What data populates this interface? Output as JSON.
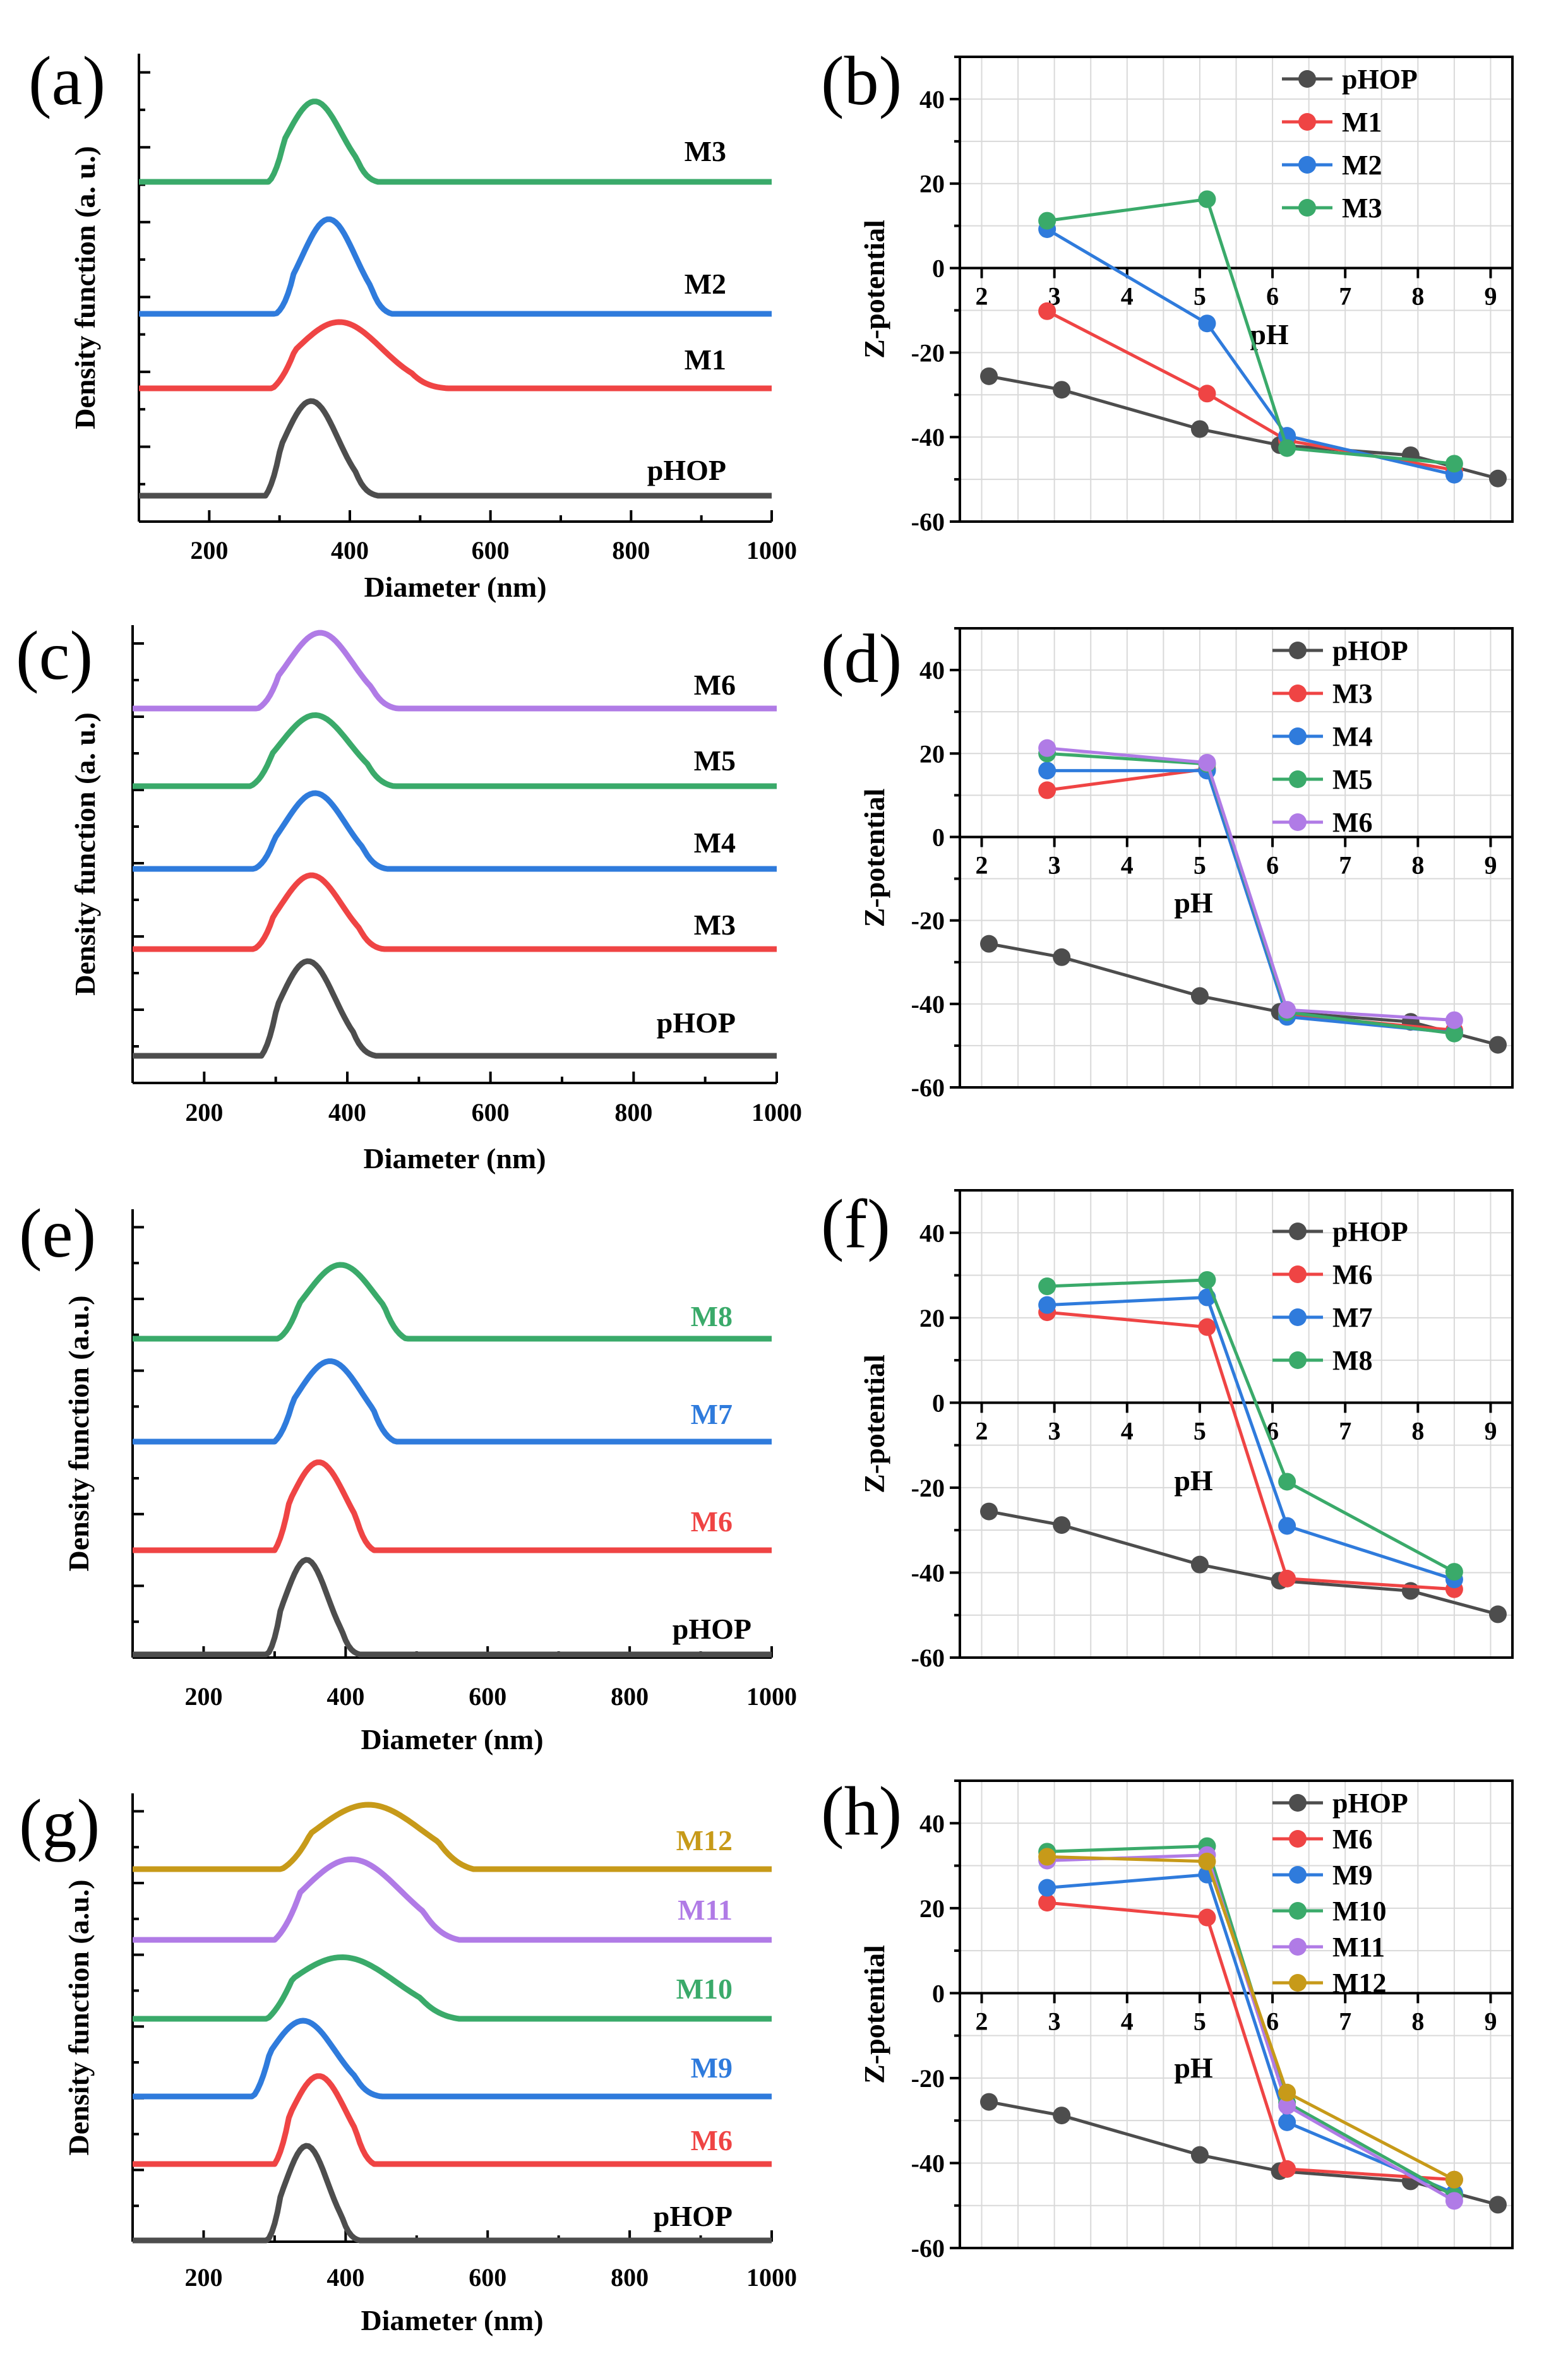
{
  "chart_data": [
    {
      "id": "a",
      "panel_label": "(a)",
      "type": "line",
      "title": "",
      "xlabel": "Diameter (nm)",
      "ylabel": "Density function (a. u.)",
      "xlim": [
        100,
        1000
      ],
      "xticks": [
        "200",
        "400",
        "600",
        "800",
        "1000"
      ],
      "xtick_values": [
        200,
        400,
        600,
        800,
        1000
      ],
      "series": [
        {
          "name": "pHOP",
          "color": "#4d4d4d",
          "peak": 345,
          "width": 38,
          "height": 1.0,
          "start": 280,
          "end": 440
        },
        {
          "name": "M1",
          "color": "#ef4444",
          "peak": 385,
          "width": 60,
          "height": 0.7,
          "start": 290,
          "end": 540
        },
        {
          "name": "M2",
          "color": "#2f7bdc",
          "peak": 370,
          "width": 38,
          "height": 1.0,
          "start": 295,
          "end": 460
        },
        {
          "name": "M3",
          "color": "#3aaa6a",
          "peak": 350,
          "width": 38,
          "height": 0.85,
          "start": 285,
          "end": 440
        }
      ]
    },
    {
      "id": "b",
      "panel_label": "(b)",
      "type": "line",
      "title": "",
      "xlabel": "pH",
      "ylabel": "Z-potential",
      "xlim": [
        1.7,
        9.3
      ],
      "ylim": [
        -60,
        50
      ],
      "xticks": [
        "2",
        "3",
        "4",
        "5",
        "6",
        "7",
        "8",
        "9"
      ],
      "yticks": [
        "40",
        "20",
        "0",
        "-20",
        "-40",
        "-60"
      ],
      "ytick_values": [
        40,
        20,
        0,
        -20,
        -40,
        -60
      ],
      "series": [
        {
          "name": "pHOP",
          "color": "#4d4d4d",
          "x": [
            2.1,
            3.1,
            5.0,
            6.1,
            7.9,
            9.1
          ],
          "y": [
            -25.6,
            -28.8,
            -38.1,
            -41.9,
            -44.3,
            -49.8
          ]
        },
        {
          "name": "M1",
          "color": "#ef4444",
          "x": [
            2.9,
            5.1,
            6.2,
            8.5
          ],
          "y": [
            -10.2,
            -29.7,
            -40.8,
            -47.8
          ]
        },
        {
          "name": "M2",
          "color": "#2f7bdc",
          "x": [
            2.9,
            5.1,
            6.2,
            8.5
          ],
          "y": [
            9.2,
            -13.1,
            -39.7,
            -48.9
          ]
        },
        {
          "name": "M3",
          "color": "#3aaa6a",
          "x": [
            2.9,
            5.1,
            6.2,
            8.5
          ],
          "y": [
            11.2,
            16.3,
            -42.6,
            -46.3
          ]
        }
      ]
    },
    {
      "id": "c",
      "panel_label": "(c)",
      "type": "line",
      "title": "",
      "xlabel": "Diameter (nm)",
      "ylabel": "Density function (a. u.)",
      "xlim": [
        100,
        1000
      ],
      "xticks": [
        "200",
        "400",
        "600",
        "800",
        "1000"
      ],
      "xtick_values": [
        200,
        400,
        600,
        800,
        1000
      ],
      "series": [
        {
          "name": "pHOP",
          "color": "#4d4d4d",
          "peak": 345,
          "width": 38,
          "height": 1.0,
          "start": 280,
          "end": 440
        },
        {
          "name": "M3",
          "color": "#ef4444",
          "peak": 350,
          "width": 42,
          "height": 0.78,
          "start": 270,
          "end": 450
        },
        {
          "name": "M4",
          "color": "#2f7bdc",
          "peak": 355,
          "width": 42,
          "height": 0.8,
          "start": 270,
          "end": 455
        },
        {
          "name": "M5",
          "color": "#3aaa6a",
          "peak": 355,
          "width": 48,
          "height": 0.75,
          "start": 265,
          "end": 465
        },
        {
          "name": "M6",
          "color": "#b07be6",
          "peak": 362,
          "width": 45,
          "height": 0.8,
          "start": 275,
          "end": 470
        }
      ]
    },
    {
      "id": "d",
      "panel_label": "(d)",
      "type": "line",
      "title": "",
      "xlabel": "pH",
      "ylabel": "Z-potential",
      "xlim": [
        1.7,
        9.3
      ],
      "ylim": [
        -60,
        50
      ],
      "xticks": [
        "2",
        "3",
        "4",
        "5",
        "6",
        "7",
        "8",
        "9"
      ],
      "yticks": [
        "40",
        "20",
        "0",
        "-20",
        "-40",
        "-60"
      ],
      "ytick_values": [
        40,
        20,
        0,
        -20,
        -40,
        -60
      ],
      "series": [
        {
          "name": "pHOP",
          "color": "#4d4d4d",
          "x": [
            2.1,
            3.1,
            5.0,
            6.1,
            7.9,
            9.1
          ],
          "y": [
            -25.6,
            -28.8,
            -38.1,
            -41.9,
            -44.3,
            -49.8
          ]
        },
        {
          "name": "M3",
          "color": "#ef4444",
          "x": [
            2.9,
            5.1,
            6.2,
            8.5
          ],
          "y": [
            11.2,
            16.3,
            -42.6,
            -46.3
          ]
        },
        {
          "name": "M4",
          "color": "#2f7bdc",
          "x": [
            2.9,
            5.1,
            6.2,
            8.5
          ],
          "y": [
            15.9,
            15.9,
            -43.1,
            -46.9
          ]
        },
        {
          "name": "M5",
          "color": "#3aaa6a",
          "x": [
            2.9,
            5.1,
            6.2,
            8.5
          ],
          "y": [
            20.0,
            17.5,
            -42.0,
            -47.1
          ]
        },
        {
          "name": "M6",
          "color": "#b07be6",
          "x": [
            2.9,
            5.1,
            6.2,
            8.5
          ],
          "y": [
            21.3,
            17.8,
            -41.4,
            -43.9
          ]
        }
      ]
    },
    {
      "id": "e",
      "panel_label": "(e)",
      "type": "line",
      "title": "",
      "xlabel": "Diameter (nm)",
      "ylabel": "Density function (a.u.)",
      "xlim": [
        100,
        1000
      ],
      "xticks": [
        "200",
        "400",
        "600",
        "800",
        "1000"
      ],
      "xtick_values": [
        200,
        400,
        600,
        800,
        1000
      ],
      "series": [
        {
          "name": "pHOP",
          "color": "#4d4d4d",
          "peak": 345,
          "width": 30,
          "height": 1.0,
          "start": 290,
          "end": 420
        },
        {
          "name": "M6",
          "color": "#ef4444",
          "peak": 362,
          "width": 38,
          "height": 0.93,
          "start": 300,
          "end": 440
        },
        {
          "name": "M7",
          "color": "#2f7bdc",
          "peak": 378,
          "width": 45,
          "height": 0.85,
          "start": 300,
          "end": 470
        },
        {
          "name": "M8",
          "color": "#3aaa6a",
          "peak": 393,
          "width": 48,
          "height": 0.78,
          "start": 305,
          "end": 485
        }
      ]
    },
    {
      "id": "f",
      "panel_label": "(f)",
      "type": "line",
      "title": "",
      "xlabel": "pH",
      "ylabel": "Z-potential",
      "xlim": [
        1.7,
        9.3
      ],
      "ylim": [
        -60,
        50
      ],
      "xticks": [
        "2",
        "3",
        "4",
        "5",
        "6",
        "7",
        "8",
        "9"
      ],
      "yticks": [
        "40",
        "20",
        "0",
        "-20",
        "-40",
        "-60"
      ],
      "ytick_values": [
        40,
        20,
        0,
        -20,
        -40,
        -60
      ],
      "series": [
        {
          "name": "pHOP",
          "color": "#4d4d4d",
          "x": [
            2.1,
            3.1,
            5.0,
            6.1,
            7.9,
            9.1
          ],
          "y": [
            -25.6,
            -28.8,
            -38.1,
            -41.9,
            -44.3,
            -49.8
          ]
        },
        {
          "name": "M6",
          "color": "#ef4444",
          "x": [
            2.9,
            5.1,
            6.2,
            8.5
          ],
          "y": [
            21.3,
            17.8,
            -41.4,
            -43.9
          ]
        },
        {
          "name": "M7",
          "color": "#2f7bdc",
          "x": [
            2.9,
            5.1,
            6.2,
            8.5
          ],
          "y": [
            23.0,
            24.8,
            -29.0,
            -41.6
          ]
        },
        {
          "name": "M8",
          "color": "#3aaa6a",
          "x": [
            2.9,
            5.1,
            6.2,
            8.5
          ],
          "y": [
            27.4,
            28.9,
            -18.6,
            -39.8
          ]
        }
      ]
    },
    {
      "id": "g",
      "panel_label": "(g)",
      "type": "line",
      "title": "",
      "xlabel": "Diameter (nm)",
      "ylabel": "Density function (a.u.)",
      "xlim": [
        100,
        1000
      ],
      "xticks": [
        "200",
        "400",
        "600",
        "800",
        "1000"
      ],
      "xtick_values": [
        200,
        400,
        600,
        800,
        1000
      ],
      "series": [
        {
          "name": "pHOP",
          "color": "#4d4d4d",
          "peak": 345,
          "width": 30,
          "height": 1.0,
          "start": 290,
          "end": 420
        },
        {
          "name": "M6",
          "color": "#ef4444",
          "peak": 362,
          "width": 38,
          "height": 0.93,
          "start": 300,
          "end": 440
        },
        {
          "name": "M9",
          "color": "#2f7bdc",
          "peak": 340,
          "width": 45,
          "height": 0.8,
          "start": 270,
          "end": 450
        },
        {
          "name": "M10",
          "color": "#3aaa6a",
          "peak": 395,
          "width": 75,
          "height": 0.65,
          "start": 290,
          "end": 560
        },
        {
          "name": "M11",
          "color": "#b07be6",
          "peak": 408,
          "width": 70,
          "height": 0.85,
          "start": 300,
          "end": 560
        },
        {
          "name": "M12",
          "color": "#c79a19",
          "peak": 432,
          "width": 75,
          "height": 0.68,
          "start": 310,
          "end": 580
        }
      ]
    },
    {
      "id": "h",
      "panel_label": "(h)",
      "type": "line",
      "title": "",
      "xlabel": "pH",
      "ylabel": "Z-potential",
      "xlim": [
        1.7,
        9.3
      ],
      "ylim": [
        -60,
        50
      ],
      "xticks": [
        "2",
        "3",
        "4",
        "5",
        "6",
        "7",
        "8",
        "9"
      ],
      "yticks": [
        "40",
        "20",
        "0",
        "-20",
        "-40",
        "-60"
      ],
      "ytick_values": [
        40,
        20,
        0,
        -20,
        -40,
        -60
      ],
      "series": [
        {
          "name": "pHOP",
          "color": "#4d4d4d",
          "x": [
            2.1,
            3.1,
            5.0,
            6.1,
            7.9,
            9.1
          ],
          "y": [
            -25.6,
            -28.8,
            -38.1,
            -41.9,
            -44.3,
            -49.8
          ]
        },
        {
          "name": "M6",
          "color": "#ef4444",
          "x": [
            2.9,
            5.1,
            6.2,
            8.5
          ],
          "y": [
            21.3,
            17.8,
            -41.4,
            -43.9
          ]
        },
        {
          "name": "M9",
          "color": "#2f7bdc",
          "x": [
            2.9,
            5.1,
            6.2,
            8.5
          ],
          "y": [
            24.8,
            27.9,
            -30.4,
            -47.1
          ]
        },
        {
          "name": "M10",
          "color": "#3aaa6a",
          "x": [
            2.9,
            5.1,
            6.2,
            8.5
          ],
          "y": [
            33.3,
            34.6,
            -25.8,
            -47.8
          ]
        },
        {
          "name": "M11",
          "color": "#b07be6",
          "x": [
            2.9,
            5.1,
            6.2,
            8.5
          ],
          "y": [
            31.2,
            32.5,
            -26.5,
            -48.9
          ]
        },
        {
          "name": "M12",
          "color": "#c79a19",
          "x": [
            2.9,
            5.1,
            6.2,
            8.5
          ],
          "y": [
            32.1,
            31.0,
            -23.4,
            -43.9
          ]
        }
      ]
    }
  ]
}
